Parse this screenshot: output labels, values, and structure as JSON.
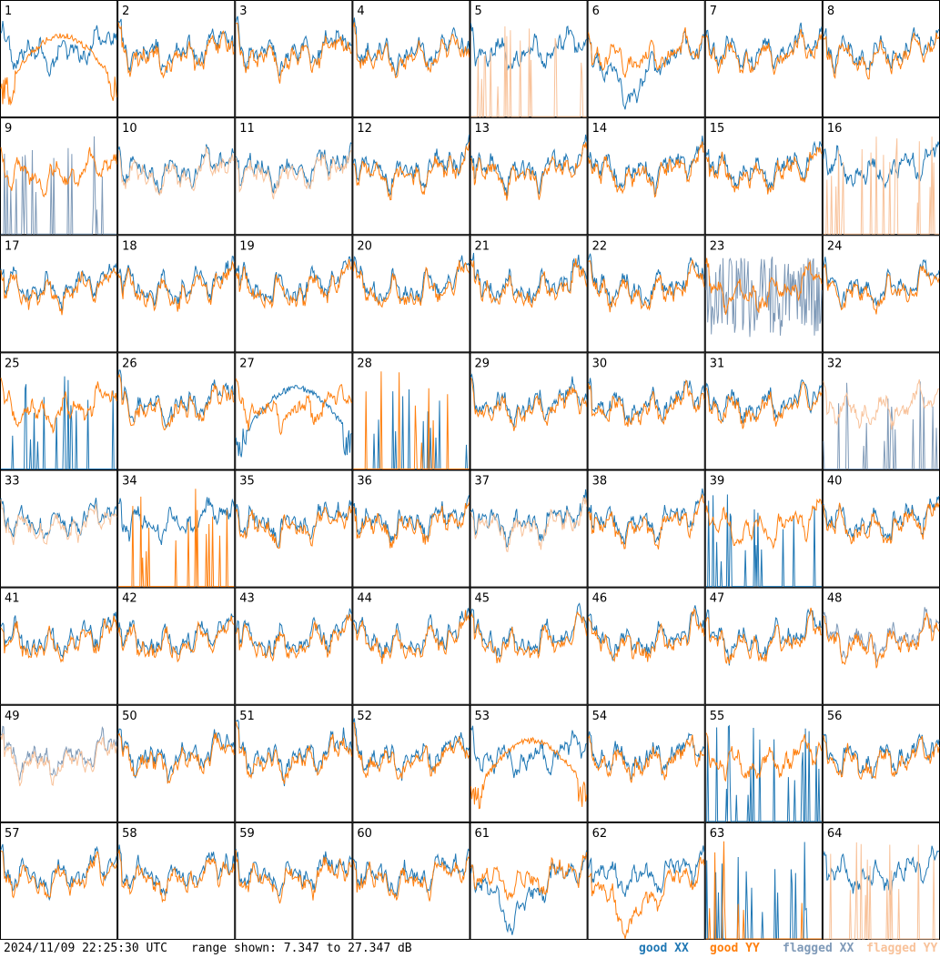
{
  "timestamp": "2024/11/09 22:25:30 UTC",
  "range_text": "range shown: 7.347 to 27.347 dB",
  "legend": [
    {
      "label": "good XX",
      "color": "#1f77b4"
    },
    {
      "label": "good YY",
      "color": "#ff7f0e"
    },
    {
      "label": "flagged XX",
      "color": "#7f9ab8"
    },
    {
      "label": "flagged YY",
      "color": "#f8c29a"
    }
  ],
  "chart_data": {
    "type": "line",
    "ylim": [
      7.347,
      27.347
    ],
    "unit": "dB",
    "grid": true,
    "cols": 8,
    "rows": 8,
    "panels": [
      {
        "id": "1",
        "xx": "good",
        "yy": "good",
        "yy_shape": "hump"
      },
      {
        "id": "2",
        "xx": "good",
        "yy": "good"
      },
      {
        "id": "3",
        "xx": "good",
        "yy": "good"
      },
      {
        "id": "4",
        "xx": "good",
        "yy": "good"
      },
      {
        "id": "5",
        "xx": "good",
        "yy": "flagged",
        "yy_shape": "spikes"
      },
      {
        "id": "6",
        "xx": "good",
        "yy": "good",
        "xx_shape": "dip"
      },
      {
        "id": "7",
        "xx": "good",
        "yy": "good"
      },
      {
        "id": "8",
        "xx": "good",
        "yy": "good"
      },
      {
        "id": "9",
        "xx": "flagged",
        "yy": "good",
        "xx_shape": "spikes"
      },
      {
        "id": "10",
        "xx": "good",
        "yy": "flagged"
      },
      {
        "id": "11",
        "xx": "good",
        "yy": "flagged"
      },
      {
        "id": "12",
        "xx": "good",
        "yy": "good"
      },
      {
        "id": "13",
        "xx": "good",
        "yy": "good"
      },
      {
        "id": "14",
        "xx": "good",
        "yy": "good"
      },
      {
        "id": "15",
        "xx": "good",
        "yy": "good"
      },
      {
        "id": "16",
        "xx": "good",
        "yy": "flagged",
        "yy_shape": "spikes"
      },
      {
        "id": "17",
        "xx": "good",
        "yy": "good"
      },
      {
        "id": "18",
        "xx": "good",
        "yy": "good"
      },
      {
        "id": "19",
        "xx": "good",
        "yy": "good"
      },
      {
        "id": "20",
        "xx": "good",
        "yy": "good"
      },
      {
        "id": "21",
        "xx": "good",
        "yy": "good"
      },
      {
        "id": "22",
        "xx": "good",
        "yy": "good"
      },
      {
        "id": "23",
        "xx": "flagged",
        "yy": "good",
        "xx_shape": "noisy"
      },
      {
        "id": "24",
        "xx": "good",
        "yy": "good"
      },
      {
        "id": "25",
        "xx": "good",
        "yy": "good",
        "xx_shape": "spikes"
      },
      {
        "id": "26",
        "xx": "good",
        "yy": "good"
      },
      {
        "id": "27",
        "xx": "good",
        "yy": "good",
        "xx_shape": "hump"
      },
      {
        "id": "28",
        "xx": "good",
        "yy": "good",
        "xx_shape": "spikes",
        "yy_shape": "spikes"
      },
      {
        "id": "29",
        "xx": "good",
        "yy": "good"
      },
      {
        "id": "30",
        "xx": "good",
        "yy": "good"
      },
      {
        "id": "31",
        "xx": "good",
        "yy": "good"
      },
      {
        "id": "32",
        "xx": "flagged",
        "yy": "flagged",
        "xx_shape": "spikes"
      },
      {
        "id": "33",
        "xx": "good",
        "yy": "flagged"
      },
      {
        "id": "34",
        "xx": "good",
        "yy": "good",
        "yy_shape": "spikes"
      },
      {
        "id": "35",
        "xx": "good",
        "yy": "good"
      },
      {
        "id": "36",
        "xx": "good",
        "yy": "good"
      },
      {
        "id": "37",
        "xx": "good",
        "yy": "flagged"
      },
      {
        "id": "38",
        "xx": "good",
        "yy": "good"
      },
      {
        "id": "39",
        "xx": "good",
        "yy": "good",
        "xx_shape": "spikes"
      },
      {
        "id": "40",
        "xx": "good",
        "yy": "good"
      },
      {
        "id": "41",
        "xx": "good",
        "yy": "good"
      },
      {
        "id": "42",
        "xx": "good",
        "yy": "good"
      },
      {
        "id": "43",
        "xx": "good",
        "yy": "good"
      },
      {
        "id": "44",
        "xx": "good",
        "yy": "good"
      },
      {
        "id": "45",
        "xx": "good",
        "yy": "good"
      },
      {
        "id": "46",
        "xx": "good",
        "yy": "good"
      },
      {
        "id": "47",
        "xx": "good",
        "yy": "good"
      },
      {
        "id": "48",
        "xx": "flagged",
        "yy": "good"
      },
      {
        "id": "49",
        "xx": "flagged",
        "yy": "flagged"
      },
      {
        "id": "50",
        "xx": "good",
        "yy": "good"
      },
      {
        "id": "51",
        "xx": "good",
        "yy": "good"
      },
      {
        "id": "52",
        "xx": "good",
        "yy": "good"
      },
      {
        "id": "53",
        "xx": "good",
        "yy": "good",
        "yy_shape": "hump"
      },
      {
        "id": "54",
        "xx": "good",
        "yy": "good"
      },
      {
        "id": "55",
        "xx": "good",
        "yy": "good",
        "xx_shape": "spikes"
      },
      {
        "id": "56",
        "xx": "good",
        "yy": "good"
      },
      {
        "id": "57",
        "xx": "good",
        "yy": "good"
      },
      {
        "id": "58",
        "xx": "good",
        "yy": "good"
      },
      {
        "id": "59",
        "xx": "good",
        "yy": "good"
      },
      {
        "id": "60",
        "xx": "good",
        "yy": "good"
      },
      {
        "id": "61",
        "xx": "good",
        "yy": "good",
        "xx_shape": "dip"
      },
      {
        "id": "62",
        "xx": "good",
        "yy": "good",
        "yy_shape": "dip"
      },
      {
        "id": "63",
        "xx": "good",
        "yy": "good",
        "xx_shape": "spikes",
        "yy_shape": "spikes"
      },
      {
        "id": "64",
        "xx": "good",
        "yy": "flagged",
        "yy_shape": "spikes"
      }
    ]
  }
}
